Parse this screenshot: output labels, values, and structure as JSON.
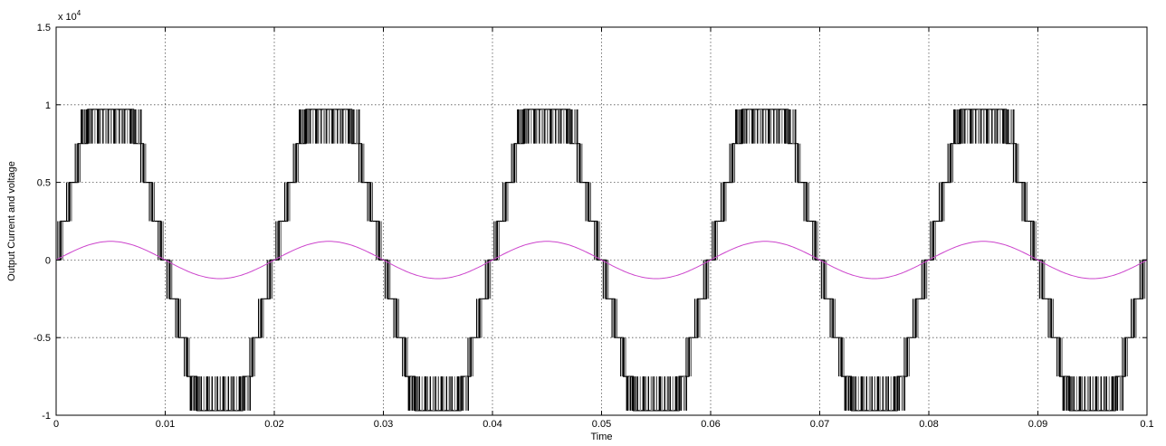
{
  "chart_data": {
    "type": "line",
    "title": "",
    "xlabel": "Time",
    "ylabel": "Output Current and voltage",
    "y_exponent_label": "x 10",
    "y_exponent_power": "4",
    "xlim": [
      0,
      0.1
    ],
    "ylim": [
      -1,
      1.5
    ],
    "x_ticks": [
      "0",
      "0.01",
      "0.02",
      "0.03",
      "0.04",
      "0.05",
      "0.06",
      "0.07",
      "0.08",
      "0.09",
      "0.1"
    ],
    "y_ticks": [
      "-1",
      "-0.5",
      "0",
      "0.5",
      "1",
      "1.5"
    ],
    "grid": true,
    "series": [
      {
        "kind": "multilevel-staircase",
        "color": "#000000",
        "frequency_hz": 50,
        "levels": [
          0,
          0.25,
          0.5,
          0.75,
          0.97
        ],
        "level_switch_times_in_half_period": [
          0.0004,
          0.0012,
          0.002,
          0.0029,
          0.0071,
          0.008,
          0.0088,
          0.0096
        ],
        "has_pwm_chatter_between_levels": true,
        "phase_start": 0
      },
      {
        "kind": "sine",
        "color": "#cc44cc",
        "frequency_hz": 50,
        "amplitude": 0.12,
        "phase_start": 0
      }
    ]
  }
}
